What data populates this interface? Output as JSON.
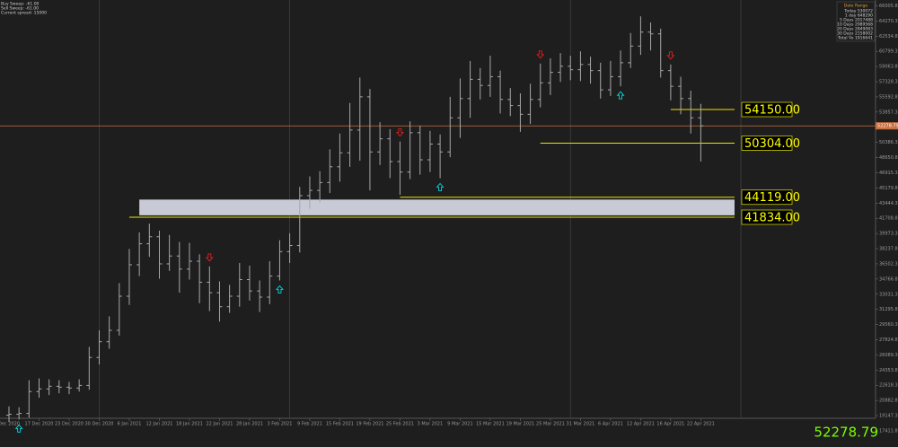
{
  "chart_data": {
    "type": "ohlc",
    "header_lines": [
      "Buy Sweep: -61.00",
      "Sell Sweep: -61.00",
      "Current spread: 15000"
    ],
    "info_box": {
      "title": "Date Range",
      "rows": [
        "Today 530072",
        "1 day 648290",
        "5 Days 2017488",
        "10 Days 2989568",
        "20 Days 2849083",
        "30 Days 2158002",
        "Total Vo 1916641"
      ]
    },
    "categories": [
      "Dec 2020",
      null,
      null,
      "17 Dec 2020",
      null,
      null,
      "23 Dec 2020",
      null,
      null,
      "30 Dec 2020",
      null,
      null,
      "6 Jan 2021",
      null,
      null,
      "12 Jan 2021",
      null,
      null,
      "18 Jan 2021",
      null,
      null,
      "22 Jan 2021",
      null,
      null,
      "28 Jan 2021",
      null,
      null,
      "3 Feb 2021",
      null,
      null,
      "9 Feb 2021",
      null,
      null,
      "15 Feb 2021",
      null,
      null,
      "19 Feb 2021",
      null,
      null,
      "25 Feb 2021",
      null,
      null,
      "3 Mar 2021",
      null,
      null,
      "9 Mar 2021",
      null,
      null,
      "15 Mar 2021",
      null,
      null,
      "19 Mar 2021",
      null,
      null,
      "25 Mar 2021",
      null,
      null,
      "31 Mar 2021",
      null,
      null,
      "6 Apr 2021",
      null,
      null,
      "12 Apr 2021",
      null,
      null,
      "16 Apr 2021",
      null,
      null,
      "22 Apr 2021"
    ],
    "open": [
      19200,
      19300,
      19400,
      21900,
      22200,
      22500,
      22400,
      22300,
      22600,
      25800,
      27600,
      28900,
      32800,
      36400,
      38800,
      39600,
      36500,
      37400,
      35900,
      36800,
      34400,
      33200,
      31600,
      32800,
      34700,
      33400,
      32700,
      35100,
      37900,
      38600,
      44300,
      44900,
      45800,
      47600,
      49200,
      51800,
      55600,
      49300,
      50800,
      48200,
      47000,
      51500,
      48400,
      50200,
      49300,
      53200,
      55400,
      57600,
      56900,
      57900,
      55300,
      54600,
      53600,
      55300,
      57200,
      58400,
      59100,
      58700,
      59300,
      58600,
      56400,
      57900,
      59500,
      61400,
      63000,
      62800,
      58600,
      56800,
      55400,
      53200
    ],
    "high": [
      20200,
      20100,
      23200,
      23400,
      23300,
      23200,
      23000,
      23300,
      27000,
      28900,
      30500,
      34300,
      38200,
      40100,
      41100,
      40300,
      39800,
      39000,
      38900,
      37600,
      36200,
      34500,
      34100,
      36600,
      36300,
      34600,
      36800,
      39200,
      40000,
      45300,
      46500,
      47100,
      49600,
      51400,
      54900,
      57800,
      56500,
      52700,
      51900,
      50500,
      52800,
      52300,
      51700,
      51300,
      55600,
      57700,
      59700,
      58900,
      60300,
      58600,
      56600,
      56000,
      57100,
      59400,
      60000,
      60600,
      60300,
      60800,
      60200,
      59500,
      59700,
      60900,
      62900,
      64800,
      64100,
      63400,
      59300,
      57900,
      56300,
      54800
    ],
    "low": [
      18400,
      18700,
      18900,
      21200,
      21500,
      21700,
      21600,
      21900,
      22100,
      25000,
      26800,
      28300,
      31800,
      35100,
      37300,
      34800,
      35700,
      33200,
      34700,
      32000,
      31100,
      29900,
      30900,
      31600,
      32300,
      31000,
      31900,
      34600,
      36600,
      37800,
      42800,
      43500,
      44600,
      45900,
      47600,
      48300,
      44900,
      47800,
      46300,
      44400,
      46200,
      46700,
      47000,
      46300,
      48700,
      50900,
      53200,
      55300,
      55600,
      53700,
      53400,
      51600,
      52500,
      54400,
      55800,
      57300,
      57500,
      57400,
      57100,
      55400,
      55700,
      56800,
      58900,
      60400,
      60900,
      57800,
      55200,
      53600,
      51400,
      48200
    ],
    "close": [
      19300,
      19400,
      21900,
      22200,
      22500,
      22400,
      22300,
      22600,
      25800,
      27600,
      28900,
      32800,
      36400,
      38800,
      39600,
      36500,
      37400,
      35900,
      36800,
      34400,
      33200,
      31600,
      32800,
      34700,
      33400,
      32700,
      35100,
      37900,
      38600,
      44300,
      44900,
      45800,
      47600,
      49200,
      51800,
      55600,
      49300,
      50800,
      48200,
      47000,
      51500,
      48400,
      50200,
      49300,
      53200,
      55400,
      57600,
      56900,
      57900,
      55300,
      54600,
      53600,
      55300,
      57200,
      58400,
      59100,
      58700,
      59300,
      58600,
      56400,
      57900,
      59500,
      61400,
      63000,
      62800,
      58600,
      56800,
      55400,
      53200,
      52278.79
    ],
    "color": "#a8a8a8",
    "current_price": 52278.79,
    "levels": [
      {
        "value": 54150,
        "label": "54150.00",
        "from": 66
      },
      {
        "value": 50304,
        "label": "50304.00",
        "from": 53
      },
      {
        "value": 44119,
        "label": "44119.00",
        "from": 39
      },
      {
        "value": 41834,
        "label": "41834.00",
        "from": 12
      }
    ],
    "zone": {
      "low": 42050,
      "high": 43850,
      "from": 13
    },
    "buy_signals": [
      1,
      27,
      43,
      61
    ],
    "sell_signals": [
      20,
      39,
      53,
      66
    ],
    "separators": [
      9,
      28,
      56
    ],
    "ylim": [
      16380,
      66672
    ],
    "yticks": [
      {
        "value": 66005.8,
        "label": "66005.80"
      },
      {
        "value": 64270.3,
        "label": "64270.30"
      },
      {
        "value": 62534.8,
        "label": "62534.80"
      },
      {
        "value": 60799.3,
        "label": "60799.30"
      },
      {
        "value": 59063.8,
        "label": "59063.80"
      },
      {
        "value": 57328.3,
        "label": "57328.30"
      },
      {
        "value": 55592.8,
        "label": "55592.80"
      },
      {
        "value": 53857.3,
        "label": "53857.30"
      },
      {
        "value": 52121.8,
        "label": "52121.80"
      },
      {
        "value": 50386.3,
        "label": "50386.30"
      },
      {
        "value": 48650.8,
        "label": "48650.80"
      },
      {
        "value": 46915.3,
        "label": "46915.30"
      },
      {
        "value": 45179.8,
        "label": "45179.80"
      },
      {
        "value": 43444.3,
        "label": "43444.30"
      },
      {
        "value": 41708.8,
        "label": "41708.80"
      },
      {
        "value": 39973.3,
        "label": "39973.30"
      },
      {
        "value": 38237.8,
        "label": "38237.80"
      },
      {
        "value": 36502.3,
        "label": "36502.30"
      },
      {
        "value": 34766.8,
        "label": "34766.80"
      },
      {
        "value": 33031.3,
        "label": "33031.30"
      },
      {
        "value": 31295.8,
        "label": "31295.80"
      },
      {
        "value": 29560.3,
        "label": "29560.30"
      },
      {
        "value": 27824.8,
        "label": "27824.80"
      },
      {
        "value": 26089.3,
        "label": "26089.30"
      },
      {
        "value": 24353.8,
        "label": "24353.80"
      },
      {
        "value": 22618.3,
        "label": "22618.30"
      },
      {
        "value": 20882.8,
        "label": "20882.80"
      },
      {
        "value": 19147.3,
        "label": "19147.30"
      },
      {
        "value": 17411.8,
        "label": "17411.80"
      }
    ]
  }
}
